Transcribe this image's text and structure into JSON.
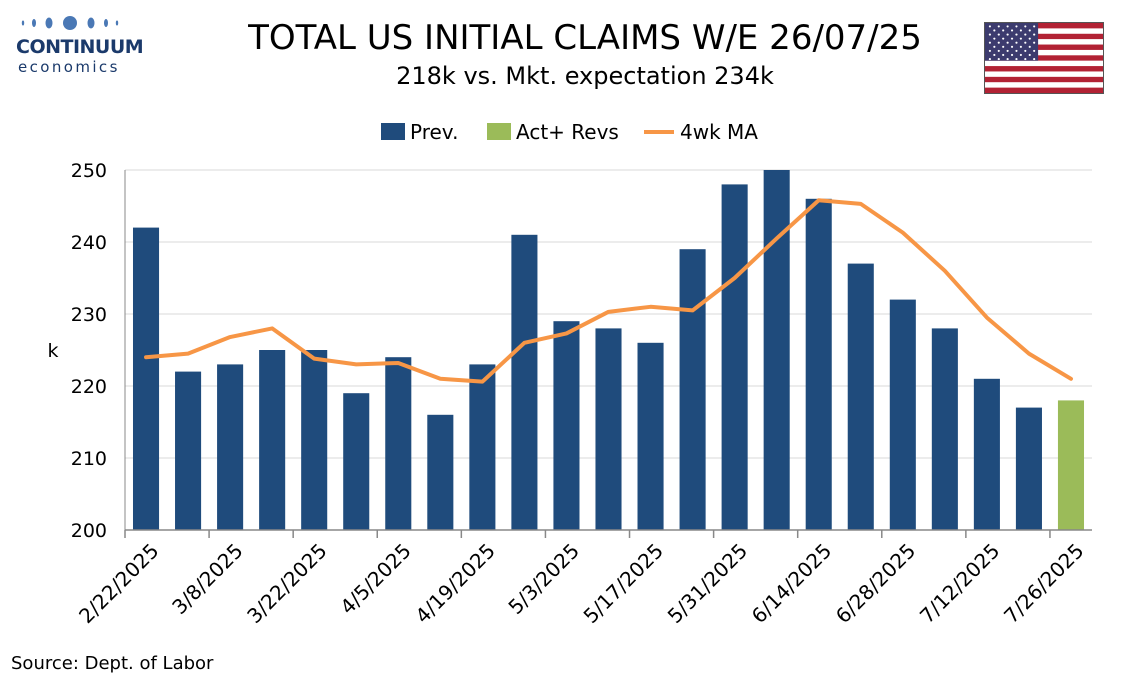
{
  "logo": {
    "name": "CONTINUUM",
    "sub": "economics"
  },
  "title": "TOTAL US INITIAL CLAIMS W/E 26/07/25",
  "subtitle": "218k vs. Mkt. expectation 234k",
  "source": "Source: Dept. of Labor",
  "flag": "us-flag",
  "colors": {
    "prev": "#1f4b7c",
    "act": "#9bbb59",
    "ma": "#f79646",
    "logo": "#1b3a6b"
  },
  "chart_data": {
    "type": "bar",
    "title": "TOTAL US INITIAL CLAIMS W/E 26/07/25",
    "subtitle": "218k vs. Mkt. expectation 234k",
    "ylabel": "k",
    "ylim": [
      200,
      250
    ],
    "yticks": [
      200,
      210,
      220,
      230,
      240,
      250
    ],
    "grid": true,
    "legend_position": "top-center",
    "dates": [
      "2/22/2025",
      "3/1/2025",
      "3/8/2025",
      "3/15/2025",
      "3/22/2025",
      "3/29/2025",
      "4/5/2025",
      "4/12/2025",
      "4/19/2025",
      "4/26/2025",
      "5/3/2025",
      "5/10/2025",
      "5/17/2025",
      "5/24/2025",
      "5/31/2025",
      "6/7/2025",
      "6/14/2025",
      "6/21/2025",
      "6/28/2025",
      "7/5/2025",
      "7/12/2025",
      "7/19/2025",
      "7/26/2025"
    ],
    "tick_labels": [
      "2/22/2025",
      "3/8/2025",
      "3/22/2025",
      "4/5/2025",
      "4/19/2025",
      "5/3/2025",
      "5/17/2025",
      "5/31/2025",
      "6/14/2025",
      "6/28/2025",
      "7/12/2025",
      "7/26/2025"
    ],
    "series": [
      {
        "name": "Prev.",
        "kind": "bar",
        "values": [
          242,
          222,
          223,
          225,
          225,
          219,
          224,
          216,
          223,
          241,
          229,
          228,
          226,
          239,
          248,
          250,
          246,
          237,
          232,
          228,
          221,
          217,
          null
        ]
      },
      {
        "name": "Act+ Revs",
        "kind": "bar",
        "values": [
          null,
          null,
          null,
          null,
          null,
          null,
          null,
          null,
          null,
          null,
          null,
          null,
          null,
          null,
          null,
          null,
          null,
          null,
          null,
          null,
          null,
          null,
          218
        ]
      },
      {
        "name": "4wk MA",
        "kind": "line",
        "values": [
          224,
          224.5,
          226.8,
          228,
          223.8,
          223,
          223.2,
          221,
          220.6,
          226,
          227.3,
          230.3,
          231,
          230.5,
          235,
          240.5,
          245.8,
          245.3,
          241.3,
          236,
          229.5,
          224.5,
          221
        ]
      }
    ]
  }
}
